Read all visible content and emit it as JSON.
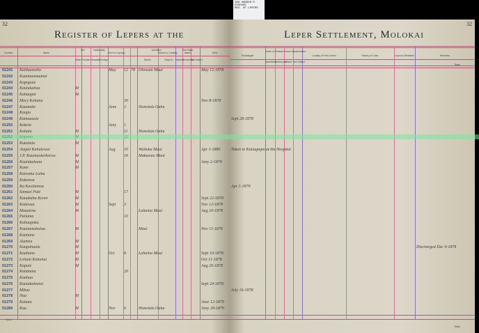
{
  "tag": {
    "line1": "360 HANSEN'S",
    "line2": "DISEASE",
    "line3": "REG. OF LEPERS"
  },
  "left_page": {
    "page_number": "32",
    "title": "Register of Lepers at the",
    "headers": [
      "Number",
      "Name",
      "Sex",
      "Male",
      "Female",
      "Nationality",
      "Hawaiian",
      "Foreign",
      "Kind of Leprosy",
      "Admitted",
      "Month",
      "Day",
      "A.D.",
      "District or Locality",
      "Island",
      "Civil State",
      "Married",
      "Unmarried",
      "Not Stated",
      "Died"
    ],
    "foot_label": "Total"
  },
  "right_page": {
    "page_number": "32",
    "title": "Leper Settlement, Molokai",
    "headers": [
      "Discharged",
      "Years of Earliest Lesion Manifestation",
      "Locality of First Lesion",
      "History of Case",
      "Leprous Relatives",
      "Remarks"
    ],
    "sub_headers": [
      "Anesthetic",
      "Tubercular",
      "Mixed",
      "Not Stated"
    ],
    "top_right_label": "Total",
    "foot_label": "Total"
  },
  "rows": [
    {
      "no": "01241",
      "name": "Kalikaunoho",
      "sex": "",
      "month": "May",
      "day": "12",
      "ad": "78",
      "district": "Olowalu  Maui",
      "died": "May 12-1878",
      "discharged": "",
      "remarks": ""
    },
    {
      "no": "01242",
      "name": "Kaumaumaumai",
      "sex": "",
      "month": "",
      "day": "",
      "ad": "",
      "district": "",
      "died": "",
      "discharged": "",
      "remarks": ""
    },
    {
      "no": "01243",
      "name": "Kapupule",
      "sex": "",
      "month": "",
      "day": "",
      "ad": "",
      "district": "",
      "died": "",
      "discharged": "",
      "remarks": ""
    },
    {
      "no": "01244",
      "name": "Kaulukahua",
      "sex": "M",
      "month": "",
      "day": "",
      "ad": "",
      "district": "",
      "died": "",
      "discharged": "",
      "remarks": ""
    },
    {
      "no": "01245",
      "name": "Kahaupai",
      "sex": "M",
      "month": "",
      "day": "",
      "ad": "",
      "district": "",
      "died": "",
      "discharged": "",
      "remarks": ""
    },
    {
      "no": "01246",
      "name": "Mary Kahanu",
      "sex": "",
      "month": "",
      "day": "30",
      "ad": "",
      "district": "",
      "died": "Nov 8-1878",
      "discharged": "",
      "remarks": ""
    },
    {
      "no": "01247",
      "name": "Kaumaka",
      "sex": "",
      "month": "June",
      "day": "2",
      "ad": "",
      "district": "Honolulu  Oahu",
      "died": "",
      "discharged": "",
      "remarks": ""
    },
    {
      "no": "01248",
      "name": "Kaupu",
      "sex": "",
      "month": "",
      "day": "",
      "ad": "",
      "district": "",
      "died": "",
      "discharged": "",
      "remarks": ""
    },
    {
      "no": "01249",
      "name": "Kamauuule",
      "sex": "",
      "month": "",
      "day": "",
      "ad": "",
      "district": "",
      "died": "",
      "discharged": "Sept 28-1878",
      "remarks": ""
    },
    {
      "no": "01250",
      "name": "Kakela",
      "sex": "",
      "month": "Jany",
      "day": "1",
      "ad": "",
      "district": "",
      "died": "",
      "discharged": "",
      "remarks": ""
    },
    {
      "no": "01251",
      "name": "Kahala",
      "sex": "M",
      "month": "",
      "day": "11",
      "ad": "",
      "district": "Honolulu  Oahu",
      "died": "",
      "discharged": "",
      "remarks": ""
    },
    {
      "no": "01252",
      "name": "Kupono",
      "sex": "M",
      "month": "",
      "day": "22",
      "ad": "",
      "district": "",
      "died": "",
      "discharged": "",
      "remarks": ""
    },
    {
      "no": "01253",
      "name": "Kukulala",
      "sex": "M",
      "month": "",
      "day": "",
      "ad": "",
      "district": "",
      "died": "",
      "discharged": "",
      "remarks": ""
    },
    {
      "no": "01254",
      "name": "Alapai Kahalewai",
      "sex": "",
      "month": "Aug",
      "day": "10",
      "ad": "",
      "district": "Wailuku  Maui",
      "died": "Apr 1-1880",
      "discharged": "Taken to Kalaupapa at the Hospital",
      "remarks": ""
    },
    {
      "no": "01255",
      "name": "J.P. Kaumuokeiheiwa",
      "sex": "M",
      "month": "",
      "day": "16",
      "ad": "",
      "district": "Makawao  Maui",
      "died": "",
      "discharged": "",
      "remarks": ""
    },
    {
      "no": "01256",
      "name": "Kaulukahuna",
      "sex": "M",
      "month": "",
      "day": "",
      "ad": "",
      "district": "",
      "died": "Jany 2-1879",
      "discharged": "",
      "remarks": ""
    },
    {
      "no": "01257",
      "name": "Kane",
      "sex": "M",
      "month": "",
      "day": "",
      "ad": "",
      "district": "",
      "died": "",
      "discharged": "",
      "remarks": ""
    },
    {
      "no": "01258",
      "name": "Kaiwaka Luika",
      "sex": "",
      "month": "",
      "day": "",
      "ad": "",
      "district": "",
      "died": "",
      "discharged": "",
      "remarks": ""
    },
    {
      "no": "01259",
      "name": "Kukonoa",
      "sex": "",
      "month": "",
      "day": "",
      "ad": "",
      "district": "",
      "died": "",
      "discharged": "",
      "remarks": ""
    },
    {
      "no": "01260",
      "name": "Ka Keoilamoa",
      "sex": "",
      "month": "",
      "day": "",
      "ad": "",
      "district": "",
      "died": "",
      "discharged": "Apr 1-1879",
      "remarks": ""
    },
    {
      "no": "01261",
      "name": "Samuel Pule",
      "sex": "M",
      "month": "",
      "day": "17",
      "ad": "",
      "district": "",
      "died": "",
      "discharged": "",
      "remarks": ""
    },
    {
      "no": "01262",
      "name": "Kauakahu Keoni",
      "sex": "M",
      "month": "",
      "day": "",
      "ad": "",
      "district": "",
      "died": "Sept 22-1878",
      "discharged": "",
      "remarks": ""
    },
    {
      "no": "01263",
      "name": "Kaiawaa",
      "sex": "M",
      "month": "Sept",
      "day": "3",
      "ad": "",
      "district": "",
      "died": "Nov 12-1878",
      "discharged": "",
      "remarks": ""
    },
    {
      "no": "01264",
      "name": "Maaaioia",
      "sex": "M",
      "month": "",
      "day": "",
      "ad": "",
      "district": "Lahaina  Maui",
      "died": "Aug 20-1878",
      "discharged": "",
      "remarks": ""
    },
    {
      "no": "01265",
      "name": "Pailama",
      "sex": "",
      "month": "",
      "day": "10",
      "ad": "",
      "district": "",
      "died": "",
      "discharged": "",
      "remarks": ""
    },
    {
      "no": "01266",
      "name": "Kahaupaka",
      "sex": "",
      "month": "",
      "day": "",
      "ad": "",
      "district": "",
      "died": "",
      "discharged": "",
      "remarks": ""
    },
    {
      "no": "01267",
      "name": "Kaunamahalua",
      "sex": "M",
      "month": "",
      "day": "",
      "ad": "",
      "district": "Maui",
      "died": "Nov 11-1878",
      "discharged": "",
      "remarks": ""
    },
    {
      "no": "01268",
      "name": "Kauhane",
      "sex": "",
      "month": "",
      "day": "",
      "ad": "",
      "district": "",
      "died": "",
      "discharged": "",
      "remarks": ""
    },
    {
      "no": "01269",
      "name": "Alamea",
      "sex": "M",
      "month": "",
      "day": "",
      "ad": "",
      "district": "",
      "died": "",
      "discharged": "",
      "remarks": ""
    },
    {
      "no": "01270",
      "name": "Kaupahaulu",
      "sex": "M",
      "month": "",
      "day": "",
      "ad": "",
      "district": "",
      "died": "",
      "discharged": "",
      "remarks": "Discharged Dec 9-1878"
    },
    {
      "no": "01271",
      "name": "Kaahanu",
      "sex": "M",
      "month": "Oct",
      "day": "8",
      "ad": "",
      "district": "Lahaina  Maui",
      "died": "Sept 10-1878",
      "discharged": "",
      "remarks": ""
    },
    {
      "no": "01272",
      "name": "Leilani Kahanui",
      "sex": "M",
      "month": "",
      "day": "",
      "ad": "",
      "district": "",
      "died": "Oct 11-1878",
      "discharged": "",
      "remarks": ""
    },
    {
      "no": "01273",
      "name": "Kapule",
      "sex": "M",
      "month": "",
      "day": "",
      "ad": "",
      "district": "",
      "died": "Aug 20-1878",
      "discharged": "",
      "remarks": ""
    },
    {
      "no": "01274",
      "name": "Kaluhana",
      "sex": "",
      "month": "",
      "day": "20",
      "ad": "",
      "district": "",
      "died": "",
      "discharged": "",
      "remarks": ""
    },
    {
      "no": "01275",
      "name": "Kaahaa",
      "sex": "",
      "month": "",
      "day": "",
      "ad": "",
      "district": "",
      "died": "",
      "discharged": "",
      "remarks": ""
    },
    {
      "no": "01276",
      "name": "Kaaiakahanui",
      "sex": "",
      "month": "",
      "day": "",
      "ad": "",
      "district": "",
      "died": "Sept 24-1878",
      "discharged": "",
      "remarks": ""
    },
    {
      "no": "01277",
      "name": "Mikae",
      "sex": "",
      "month": "",
      "day": "",
      "ad": "",
      "district": "",
      "died": "",
      "discharged": "July 16-1878",
      "remarks": ""
    },
    {
      "no": "01278",
      "name": "Naa",
      "sex": "M",
      "month": "",
      "day": "",
      "ad": "",
      "district": "",
      "died": "",
      "discharged": "",
      "remarks": ""
    },
    {
      "no": "01279",
      "name": "Kaiaaa",
      "sex": "",
      "month": "",
      "day": "",
      "ad": "",
      "district": "",
      "died": "June 12-1879",
      "discharged": "",
      "remarks": ""
    },
    {
      "no": "01280",
      "name": "Kaa",
      "sex": "M",
      "month": "Nov",
      "day": "6",
      "ad": "",
      "district": "Honolulu  Oahu",
      "died": "Jany 28-1879",
      "discharged": "",
      "remarks": ""
    }
  ],
  "colors": {
    "pink_rule": "#d66f93",
    "purple_rule": "#8a71c4",
    "paper": "#d9d4c4",
    "number_ink": "#2e4c8c"
  }
}
